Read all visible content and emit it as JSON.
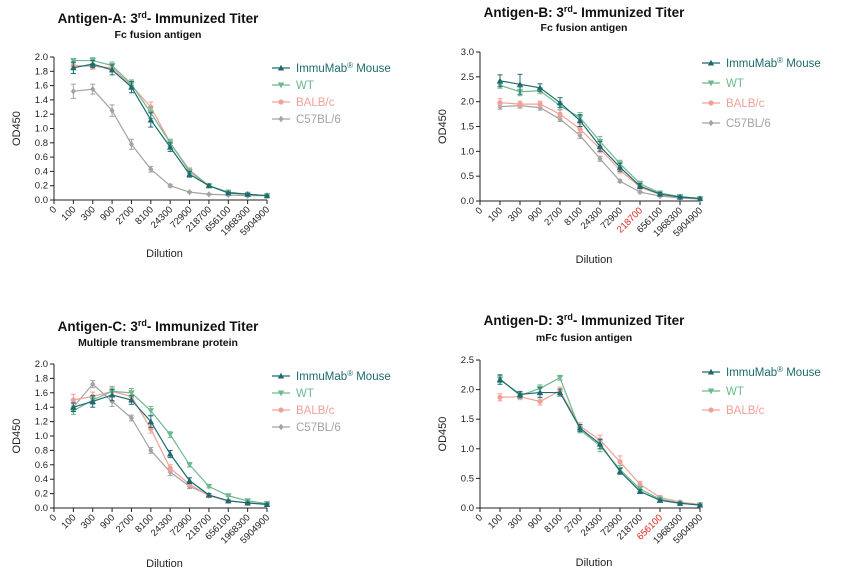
{
  "series_styles": {
    "ImmuMab Mouse": {
      "color": "#1d6b6e",
      "marker": "triangle-up"
    },
    "WT": {
      "color": "#6db98f",
      "marker": "triangle-down"
    },
    "BALB/c": {
      "color": "#f2a097",
      "marker": "circle"
    },
    "C57BL/6": {
      "color": "#a3a3a3",
      "marker": "diamond"
    }
  },
  "charts": [
    {
      "title_main": "Antigen-A: 3",
      "title_sup": "rd",
      "title_tail": "- Immunized Titer",
      "subtitle": "Fc fusion antigen",
      "highlight_tick": ""
    },
    {
      "title_main": "Antigen-B: 3",
      "title_sup": "rd",
      "title_tail": "- Immunized Titer",
      "subtitle": "Fc fusion antigen",
      "highlight_tick": "218700"
    },
    {
      "title_main": "Antigen-C: 3",
      "title_sup": "rd",
      "title_tail": "- Immunized Titer",
      "subtitle": "Multiple transmembrane protein",
      "highlight_tick": ""
    },
    {
      "title_main": "Antigen-D: 3",
      "title_sup": "rd",
      "title_tail": "- Immunized Titer",
      "subtitle": "mFc fusion antigen",
      "highlight_tick": "656100"
    }
  ],
  "chart_data": [
    {
      "type": "line",
      "title": "Antigen-A: 3rd- Immunized Titer",
      "subtitle": "Fc fusion antigen",
      "xlabel": "Dilution",
      "ylabel": "OD450",
      "x_categories": [
        "0",
        "100",
        "300",
        "900",
        "2700",
        "8100",
        "24300",
        "72900",
        "218700",
        "656100",
        "1968300",
        "5904900"
      ],
      "ylim": [
        0,
        2.0
      ],
      "yticks": [
        "0.0",
        "0.2",
        "0.4",
        "0.6",
        "0.8",
        "1.0",
        "1.2",
        "1.4",
        "1.6",
        "1.8",
        "2.0"
      ],
      "legend_position": "right",
      "series": [
        {
          "name": "ImmuMab® Mouse",
          "key": "ImmuMab Mouse",
          "values": [
            1.85,
            1.9,
            1.82,
            1.58,
            1.12,
            0.74,
            0.36,
            0.2,
            0.1,
            0.08,
            0.06
          ],
          "errors": [
            0.08,
            0.05,
            0.07,
            0.08,
            0.1,
            0.06,
            0.04,
            0.02,
            0.01,
            0.01,
            0.01
          ]
        },
        {
          "name": "WT",
          "key": "WT",
          "values": [
            1.95,
            1.95,
            1.88,
            1.62,
            1.22,
            0.8,
            0.4,
            0.2,
            0.11,
            0.08,
            0.06
          ],
          "errors": [
            0.03,
            0.04,
            0.05,
            0.06,
            0.08,
            0.05,
            0.03,
            0.02,
            0.01,
            0.01,
            0.01
          ]
        },
        {
          "name": "BALB/c",
          "key": "BALB/c",
          "values": [
            1.88,
            1.87,
            1.85,
            1.6,
            1.3,
            0.8,
            0.42,
            0.2,
            0.1,
            0.08,
            0.06
          ],
          "errors": [
            0.04,
            0.04,
            0.04,
            0.05,
            0.07,
            0.05,
            0.03,
            0.02,
            0.01,
            0.01,
            0.01
          ]
        },
        {
          "name": "C57BL/6",
          "key": "C57BL/6",
          "values": [
            1.52,
            1.55,
            1.25,
            0.78,
            0.43,
            0.2,
            0.11,
            0.08,
            0.07,
            0.06,
            0.06
          ],
          "errors": [
            0.1,
            0.07,
            0.08,
            0.07,
            0.04,
            0.02,
            0.01,
            0.01,
            0.01,
            0.01,
            0.01
          ]
        }
      ]
    },
    {
      "type": "line",
      "title": "Antigen-B: 3rd- Immunized Titer",
      "subtitle": "Fc fusion antigen",
      "xlabel": "Dilution",
      "ylabel": "OD450",
      "x_categories": [
        "0",
        "100",
        "300",
        "900",
        "2700",
        "8100",
        "24300",
        "72900",
        "218700",
        "656100",
        "1968300",
        "5904900"
      ],
      "ylim": [
        0,
        3.0
      ],
      "yticks": [
        "0.0",
        "0.5",
        "1.0",
        "1.5",
        "2.0",
        "2.5",
        "3.0"
      ],
      "legend_position": "right",
      "series": [
        {
          "name": "ImmuMab® Mouse",
          "key": "ImmuMab Mouse",
          "values": [
            2.42,
            2.35,
            2.28,
            1.98,
            1.62,
            1.1,
            0.68,
            0.3,
            0.14,
            0.08,
            0.05
          ],
          "errors": [
            0.12,
            0.2,
            0.08,
            0.1,
            0.12,
            0.1,
            0.08,
            0.05,
            0.03,
            0.02,
            0.01
          ]
        },
        {
          "name": "WT",
          "key": "WT",
          "values": [
            2.33,
            2.2,
            2.22,
            1.92,
            1.68,
            1.2,
            0.75,
            0.35,
            0.16,
            0.09,
            0.05
          ],
          "errors": [
            0.06,
            0.08,
            0.06,
            0.08,
            0.1,
            0.1,
            0.07,
            0.05,
            0.03,
            0.02,
            0.01
          ]
        },
        {
          "name": "BALB/c",
          "key": "BALB/c",
          "values": [
            1.98,
            1.95,
            1.95,
            1.75,
            1.45,
            1.05,
            0.62,
            0.28,
            0.13,
            0.08,
            0.05
          ],
          "errors": [
            0.08,
            0.06,
            0.06,
            0.08,
            0.1,
            0.08,
            0.06,
            0.04,
            0.02,
            0.01,
            0.01
          ]
        },
        {
          "name": "C57BL/6",
          "key": "C57BL/6",
          "values": [
            1.9,
            1.92,
            1.88,
            1.65,
            1.32,
            0.85,
            0.4,
            0.18,
            0.1,
            0.06,
            0.04
          ],
          "errors": [
            0.05,
            0.05,
            0.05,
            0.05,
            0.06,
            0.05,
            0.03,
            0.02,
            0.01,
            0.01,
            0.01
          ]
        }
      ]
    },
    {
      "type": "line",
      "title": "Antigen-C: 3rd- Immunized Titer",
      "subtitle": "Multiple transmembrane protein",
      "xlabel": "Dilution",
      "ylabel": "OD450",
      "x_categories": [
        "0",
        "100",
        "300",
        "900",
        "2700",
        "8100",
        "24300",
        "72900",
        "218700",
        "656100",
        "1968300",
        "5904900"
      ],
      "ylim": [
        0,
        2.0
      ],
      "yticks": [
        "0.0",
        "0.2",
        "0.4",
        "0.6",
        "0.8",
        "1.0",
        "1.2",
        "1.4",
        "1.6",
        "1.8",
        "2.0"
      ],
      "legend_position": "right",
      "series": [
        {
          "name": "ImmuMab® Mouse",
          "key": "ImmuMab Mouse",
          "values": [
            1.4,
            1.48,
            1.57,
            1.5,
            1.2,
            0.75,
            0.38,
            0.18,
            0.1,
            0.07,
            0.05
          ],
          "errors": [
            0.06,
            0.08,
            0.08,
            0.06,
            0.08,
            0.05,
            0.04,
            0.02,
            0.01,
            0.01,
            0.01
          ]
        },
        {
          "name": "WT",
          "key": "WT",
          "values": [
            1.35,
            1.5,
            1.62,
            1.6,
            1.35,
            1.02,
            0.6,
            0.3,
            0.17,
            0.1,
            0.06
          ],
          "errors": [
            0.05,
            0.06,
            0.06,
            0.06,
            0.06,
            0.04,
            0.03,
            0.02,
            0.01,
            0.01,
            0.01
          ]
        },
        {
          "name": "BALB/c",
          "key": "BALB/c",
          "values": [
            1.5,
            1.55,
            1.62,
            1.55,
            1.1,
            0.55,
            0.33,
            0.17,
            0.1,
            0.07,
            0.05
          ],
          "errors": [
            0.08,
            0.06,
            0.07,
            0.06,
            0.06,
            0.05,
            0.03,
            0.02,
            0.01,
            0.01,
            0.01
          ]
        },
        {
          "name": "C57BL/6",
          "key": "C57BL/6",
          "values": [
            1.4,
            1.72,
            1.48,
            1.25,
            0.8,
            0.5,
            0.3,
            0.18,
            0.1,
            0.07,
            0.05
          ],
          "errors": [
            0.05,
            0.05,
            0.07,
            0.04,
            0.04,
            0.05,
            0.03,
            0.02,
            0.01,
            0.01,
            0.01
          ]
        }
      ]
    },
    {
      "type": "line",
      "title": "Antigen-D: 3rd- Immunized Titer",
      "subtitle": "mFc fusion antigen",
      "xlabel": "Dilution",
      "ylabel": "OD450",
      "x_categories": [
        "0",
        "100",
        "300",
        "900",
        "8100",
        "2700",
        "24300",
        "72900",
        "218700",
        "656100",
        "1968300",
        "5904900"
      ],
      "ylim": [
        0,
        2.5
      ],
      "yticks": [
        "0.0",
        "0.5",
        "1.0",
        "1.5",
        "2.0",
        "2.5"
      ],
      "legend_position": "right",
      "series": [
        {
          "name": "ImmuMab® Mouse",
          "key": "ImmuMab Mouse",
          "values": [
            2.17,
            1.92,
            1.95,
            1.95,
            1.35,
            1.08,
            0.62,
            0.28,
            0.13,
            0.08,
            0.05
          ],
          "errors": [
            0.08,
            0.05,
            0.08,
            0.06,
            0.06,
            0.08,
            0.05,
            0.03,
            0.02,
            0.01,
            0.01
          ]
        },
        {
          "name": "WT",
          "key": "WT",
          "values": [
            2.18,
            1.9,
            2.02,
            2.2,
            1.32,
            1.05,
            0.65,
            0.32,
            0.15,
            0.08,
            0.05
          ],
          "errors": [
            0.06,
            0.05,
            0.06,
            0.04,
            0.05,
            0.1,
            0.07,
            0.04,
            0.02,
            0.01,
            0.01
          ]
        },
        {
          "name": "BALB/c",
          "key": "BALB/c",
          "values": [
            1.87,
            1.88,
            1.8,
            1.98,
            1.38,
            1.15,
            0.78,
            0.4,
            0.18,
            0.1,
            0.06
          ],
          "errors": [
            0.06,
            0.05,
            0.06,
            0.06,
            0.06,
            0.08,
            0.1,
            0.05,
            0.03,
            0.01,
            0.01
          ]
        }
      ]
    }
  ]
}
